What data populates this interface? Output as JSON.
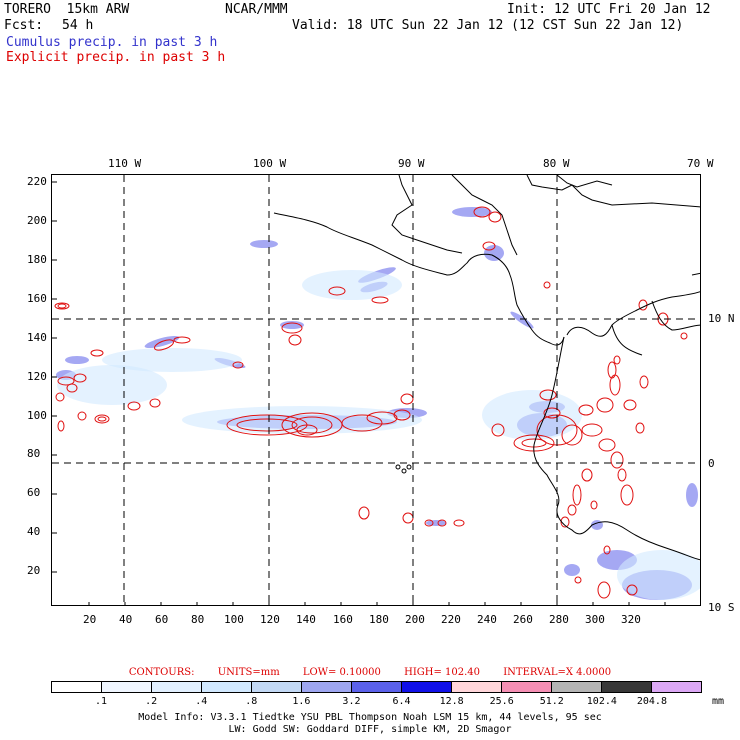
{
  "header": {
    "model": "TORERO  15km ARW",
    "center": "NCAR/MMM",
    "init": "Init: 12 UTC Fri 20 Jan 12",
    "fcst_label": "Fcst:",
    "fcst_hours": "54 h",
    "valid": "Valid: 18 UTC Sun 22 Jan 12 (12 CST Sun 22 Jan 12)",
    "cumulus": "Cumulus precip. in past 3 h",
    "explicit": "Explicit precip. in past 3 h"
  },
  "map": {
    "top_lon_labels": [
      "110 W",
      "100 W",
      "90 W",
      "80 W",
      "70 W"
    ],
    "right_lat_labels": [
      "10 N",
      "0",
      "10 S"
    ],
    "y_ticks": [
      "220",
      "200",
      "180",
      "160",
      "140",
      "120",
      "100",
      "80",
      "60",
      "40",
      "20"
    ],
    "x_ticks": [
      "20",
      "40",
      "60",
      "80",
      "100",
      "120",
      "140",
      "160",
      "180",
      "200",
      "220",
      "240",
      "260",
      "280",
      "300",
      "320"
    ],
    "colors": {
      "cumulus": "#4a4fe0",
      "explicit": "#e01010",
      "grid": "#000000"
    }
  },
  "contours": {
    "title": "CONTOURS:",
    "units": "UNITS=mm",
    "low": "LOW= 0.10000",
    "high": "HIGH=  102.40",
    "interval": "INTERVAL=X  4.0000"
  },
  "colorbar": {
    "labels": [
      ".1",
      ".2",
      ".4",
      ".8",
      "1.6",
      "3.2",
      "6.4",
      "12.8",
      "25.6",
      "51.2",
      "102.4",
      "204.8"
    ],
    "unit": "mm",
    "colors": [
      "#ffffff",
      "#f0f6ff",
      "#e2f0ff",
      "#d2e9ff",
      "#c3d9f5",
      "#9ea6f0",
      "#5b61ea",
      "#1010e8",
      "#ffd6da",
      "#f58fb4",
      "#b4b4b4",
      "#383838",
      "#dca8f5"
    ]
  },
  "footer": {
    "line1": "Model Info: V3.3.1    Tiedtke YSU PBL  Thompson     Noah LSM  15 km,   44 levels,   95 sec",
    "line2": "LW: Godd SW: Goddard DIFF, simple KM, 2D Smagor"
  }
}
